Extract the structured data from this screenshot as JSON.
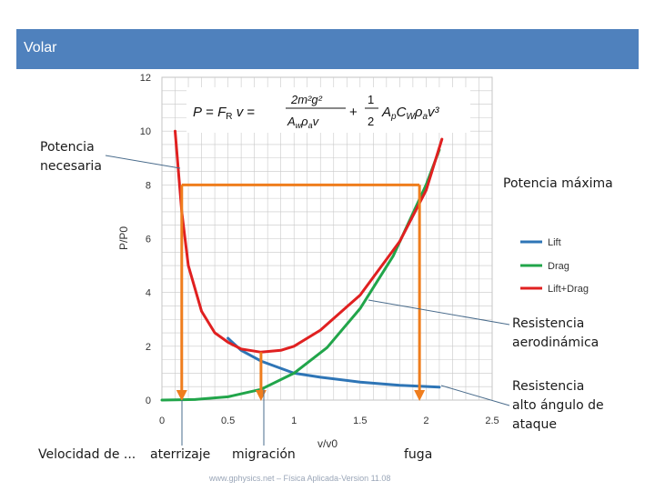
{
  "title_bar": {
    "title": "Volar"
  },
  "annotations": {
    "potencia_necesaria": [
      "Potencia",
      "necesaria"
    ],
    "potencia_maxima": "Potencia máxima",
    "resistencia_aerodinamica": [
      "Resistencia",
      "aerodinámica"
    ],
    "resistencia_alto_angulo": [
      "Resistencia",
      "alto ángulo de",
      "ataque"
    ]
  },
  "bottom_labels": {
    "velocidad": "Velocidad de ...",
    "aterrizaje": "aterrizaje",
    "migracion": "migración",
    "fuga": "fuga"
  },
  "footer": "www.gphysics.net – Física Aplicada-Version 11.08",
  "colors": {
    "title_bar": "#4f81bd",
    "lift": "#2e75b6",
    "drag": "#21a54a",
    "lift_drag": "#e02020",
    "markers": "#ef7d1d",
    "grid": "#c8c8c8"
  },
  "chart_data": {
    "type": "line",
    "title": "P = F_R v = 2m²g² / (A_w ρ_a v) + ½ A_p C_W ρ_a v³",
    "xlabel": "v/v0",
    "ylabel": "P/P0",
    "xlim": [
      0,
      2.5
    ],
    "ylim": [
      0,
      12
    ],
    "xticks": [
      "0",
      "0.5",
      "1",
      "1.5",
      "2",
      "2.5"
    ],
    "yticks": [
      "0",
      "2",
      "4",
      "6",
      "8",
      "10",
      "12"
    ],
    "grid": true,
    "legend_position": "right",
    "series": [
      {
        "name": "Lift",
        "x": [
          0.5,
          0.6,
          0.75,
          0.9,
          1.0,
          1.2,
          1.5,
          1.8,
          2.1
        ],
        "y": [
          2.3,
          1.85,
          1.45,
          1.18,
          1.0,
          0.85,
          0.67,
          0.55,
          0.48
        ]
      },
      {
        "name": "Drag",
        "x": [
          0.0,
          0.25,
          0.5,
          0.75,
          1.0,
          1.25,
          1.5,
          1.75,
          2.0,
          2.1
        ],
        "y": [
          0.0,
          0.02,
          0.12,
          0.4,
          1.0,
          1.95,
          3.4,
          5.35,
          8.0,
          9.3
        ]
      },
      {
        "name": "Lift+Drag",
        "x": [
          0.1,
          0.15,
          0.2,
          0.3,
          0.4,
          0.5,
          0.6,
          0.75,
          0.9,
          1.0,
          1.2,
          1.5,
          1.8,
          2.0,
          2.12
        ],
        "y": [
          10.0,
          7.0,
          5.0,
          3.3,
          2.5,
          2.15,
          1.9,
          1.78,
          1.85,
          2.0,
          2.6,
          3.9,
          5.9,
          7.8,
          9.7
        ]
      }
    ],
    "annotations": [
      {
        "type": "hline",
        "y": 8,
        "x_from": 0.15,
        "x_to": 1.95
      },
      {
        "type": "vline",
        "x": 0.15,
        "y_from": 8,
        "y_to": 0
      },
      {
        "type": "vline",
        "x": 0.75,
        "y_from": 1.78,
        "y_to": 0
      },
      {
        "type": "vline",
        "x": 1.95,
        "y_from": 8,
        "y_to": 0
      }
    ]
  }
}
